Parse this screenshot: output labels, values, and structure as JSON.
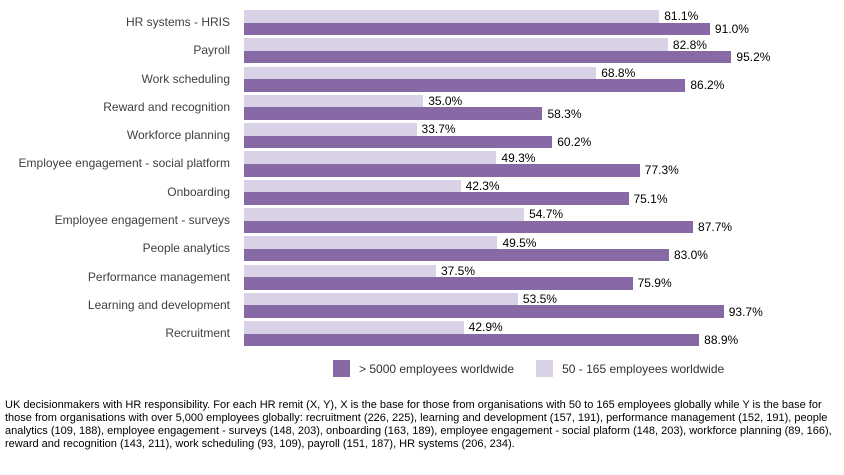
{
  "chart_data": {
    "type": "bar",
    "orientation": "horizontal",
    "title": "",
    "xlabel": "",
    "ylabel": "",
    "xlim": [
      0,
      100
    ],
    "grid": false,
    "legend_position": "bottom",
    "value_suffix": "%",
    "row_order_top_to_bottom": [
      1,
      0
    ],
    "categories": [
      "HR systems - HRIS",
      "Payroll",
      "Work scheduling",
      "Reward and recognition",
      "Workforce planning",
      "Employee engagement - social platform",
      "Onboarding",
      "Employee engagement - surveys",
      "People analytics",
      "Performance management",
      "Learning and development",
      "Recruitment"
    ],
    "series": [
      {
        "name": "> 5000 employees worldwide",
        "color": "#8769A5",
        "values": [
          91.0,
          95.2,
          86.2,
          58.3,
          60.2,
          77.3,
          75.1,
          87.7,
          83.0,
          75.9,
          93.7,
          88.9
        ]
      },
      {
        "name": "50 - 165 employees worldwide",
        "color": "#D9D1E5",
        "values": [
          81.1,
          82.8,
          68.8,
          35.0,
          33.7,
          49.3,
          42.3,
          54.7,
          49.5,
          37.5,
          53.5,
          42.9
        ]
      }
    ]
  },
  "caption": "UK decisionmakers with HR responsibility. For each HR remit (X, Y), X is the base for those from organisations with 50 to 165 employees globally while Y is the base for those from organisations with over 5,000 employees globally: recruitment (226, 225), learning and development (157, 191), performance management (152, 191), people analytics (109, 188), employee engagement - surveys (148, 203), onboarding (163, 189), employee engagement - social plaform (148, 203), workforce planning (89, 166), reward and recognition (143, 211), work scheduling (93, 109), payroll (151, 187), HR systems (206, 234)."
}
